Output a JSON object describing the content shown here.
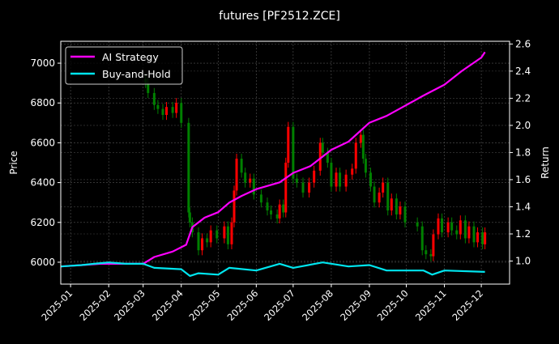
{
  "chart_data": {
    "type": "candlestick+line",
    "title": "futures [PF2512.ZCE]",
    "xlabel": "",
    "ylabel_left": "Price",
    "ylabel_right": "Return",
    "xlim": [
      "2024-12-24",
      "2025-12-24"
    ],
    "ylim_left": [
      5890,
      7110
    ],
    "ylim_right": [
      0.83,
      2.62
    ],
    "grid": true,
    "legend_position": "top-left",
    "x_ticks": [
      "2025-01",
      "2025-02",
      "2025-03",
      "2025-04",
      "2025-05",
      "2025-06",
      "2025-07",
      "2025-08",
      "2025-09",
      "2025-10",
      "2025-11",
      "2025-12"
    ],
    "y_ticks_left": [
      6000,
      6200,
      6400,
      6600,
      6800,
      7000
    ],
    "y_ticks_right": [
      1.0,
      1.2,
      1.4,
      1.6,
      1.8,
      2.0,
      2.2,
      2.4,
      2.6
    ],
    "colors": {
      "up": "#ff0000",
      "down": "#008000",
      "ai": "#ff00ff",
      "bh": "#00e5ee"
    },
    "price": {
      "dates": [
        "2025-03-03",
        "2025-03-05",
        "2025-03-10",
        "2025-03-13",
        "2025-03-17",
        "2025-03-20",
        "2025-03-25",
        "2025-03-28",
        "2025-04-01",
        "2025-04-07",
        "2025-04-08",
        "2025-04-10",
        "2025-04-15",
        "2025-04-18",
        "2025-04-22",
        "2025-04-25",
        "2025-04-30",
        "2025-05-06",
        "2025-05-09",
        "2025-05-12",
        "2025-05-14",
        "2025-05-16",
        "2025-05-20",
        "2025-05-23",
        "2025-05-27",
        "2025-05-30",
        "2025-06-05",
        "2025-06-10",
        "2025-06-13",
        "2025-06-18",
        "2025-06-20",
        "2025-06-23",
        "2025-06-25",
        "2025-06-27",
        "2025-07-01",
        "2025-07-04",
        "2025-07-09",
        "2025-07-14",
        "2025-07-18",
        "2025-07-23",
        "2025-07-25",
        "2025-07-29",
        "2025-08-01",
        "2025-08-05",
        "2025-08-08",
        "2025-08-13",
        "2025-08-18",
        "2025-08-21",
        "2025-08-25",
        "2025-08-27",
        "2025-08-29",
        "2025-09-02",
        "2025-09-05",
        "2025-09-09",
        "2025-09-12",
        "2025-09-16",
        "2025-09-19",
        "2025-09-23",
        "2025-09-26",
        "2025-09-30",
        "2025-10-10",
        "2025-10-14",
        "2025-10-17",
        "2025-10-21",
        "2025-10-23",
        "2025-10-27",
        "2025-10-30",
        "2025-11-04",
        "2025-11-07",
        "2025-11-11",
        "2025-11-14",
        "2025-11-18",
        "2025-11-21",
        "2025-11-25",
        "2025-11-28",
        "2025-12-02",
        "2025-12-04"
      ],
      "close": [
        6900,
        6850,
        6790,
        6770,
        6740,
        6780,
        6750,
        6800,
        6700,
        6250,
        6200,
        6150,
        6060,
        6120,
        6100,
        6160,
        6120,
        6180,
        6090,
        6200,
        6360,
        6520,
        6450,
        6400,
        6420,
        6340,
        6300,
        6260,
        6240,
        6220,
        6290,
        6250,
        6500,
        6680,
        6420,
        6400,
        6350,
        6400,
        6460,
        6600,
        6550,
        6500,
        6380,
        6450,
        6380,
        6440,
        6470,
        6600,
        6640,
        6520,
        6450,
        6380,
        6300,
        6350,
        6400,
        6260,
        6320,
        6240,
        6280,
        6200,
        6180,
        6060,
        6040,
        6030,
        6140,
        6220,
        6150,
        6200,
        6160,
        6140,
        6210,
        6120,
        6180,
        6100,
        6150,
        6090,
        6150
      ]
    },
    "series": [
      {
        "name": "AI Strategy",
        "dates": [
          "2024-12-24",
          "2025-01-10",
          "2025-01-25",
          "2025-02-15",
          "2025-03-01",
          "2025-03-10",
          "2025-03-25",
          "2025-04-05",
          "2025-04-10",
          "2025-04-20",
          "2025-05-01",
          "2025-05-10",
          "2025-05-20",
          "2025-06-01",
          "2025-06-20",
          "2025-07-01",
          "2025-07-15",
          "2025-08-01",
          "2025-08-15",
          "2025-09-01",
          "2025-09-15",
          "2025-10-01",
          "2025-10-15",
          "2025-11-01",
          "2025-11-15",
          "2025-12-01",
          "2025-12-04"
        ],
        "values": [
          0.96,
          0.97,
          0.98,
          0.98,
          0.98,
          1.03,
          1.07,
          1.12,
          1.25,
          1.32,
          1.36,
          1.43,
          1.48,
          1.53,
          1.58,
          1.65,
          1.7,
          1.82,
          1.88,
          2.02,
          2.07,
          2.15,
          2.22,
          2.3,
          2.4,
          2.5,
          2.54
        ]
      },
      {
        "name": "Buy-and-Hold",
        "dates": [
          "2024-12-24",
          "2025-01-10",
          "2025-01-20",
          "2025-02-01",
          "2025-02-15",
          "2025-03-01",
          "2025-03-10",
          "2025-04-01",
          "2025-04-08",
          "2025-04-15",
          "2025-05-01",
          "2025-05-10",
          "2025-06-01",
          "2025-06-20",
          "2025-07-01",
          "2025-07-25",
          "2025-08-15",
          "2025-09-01",
          "2025-09-15",
          "2025-10-15",
          "2025-10-22",
          "2025-11-01",
          "2025-12-04"
        ],
        "values": [
          0.96,
          0.97,
          0.98,
          0.99,
          0.98,
          0.98,
          0.95,
          0.94,
          0.89,
          0.91,
          0.9,
          0.95,
          0.93,
          0.98,
          0.95,
          0.99,
          0.96,
          0.97,
          0.93,
          0.93,
          0.9,
          0.93,
          0.92
        ]
      }
    ]
  }
}
